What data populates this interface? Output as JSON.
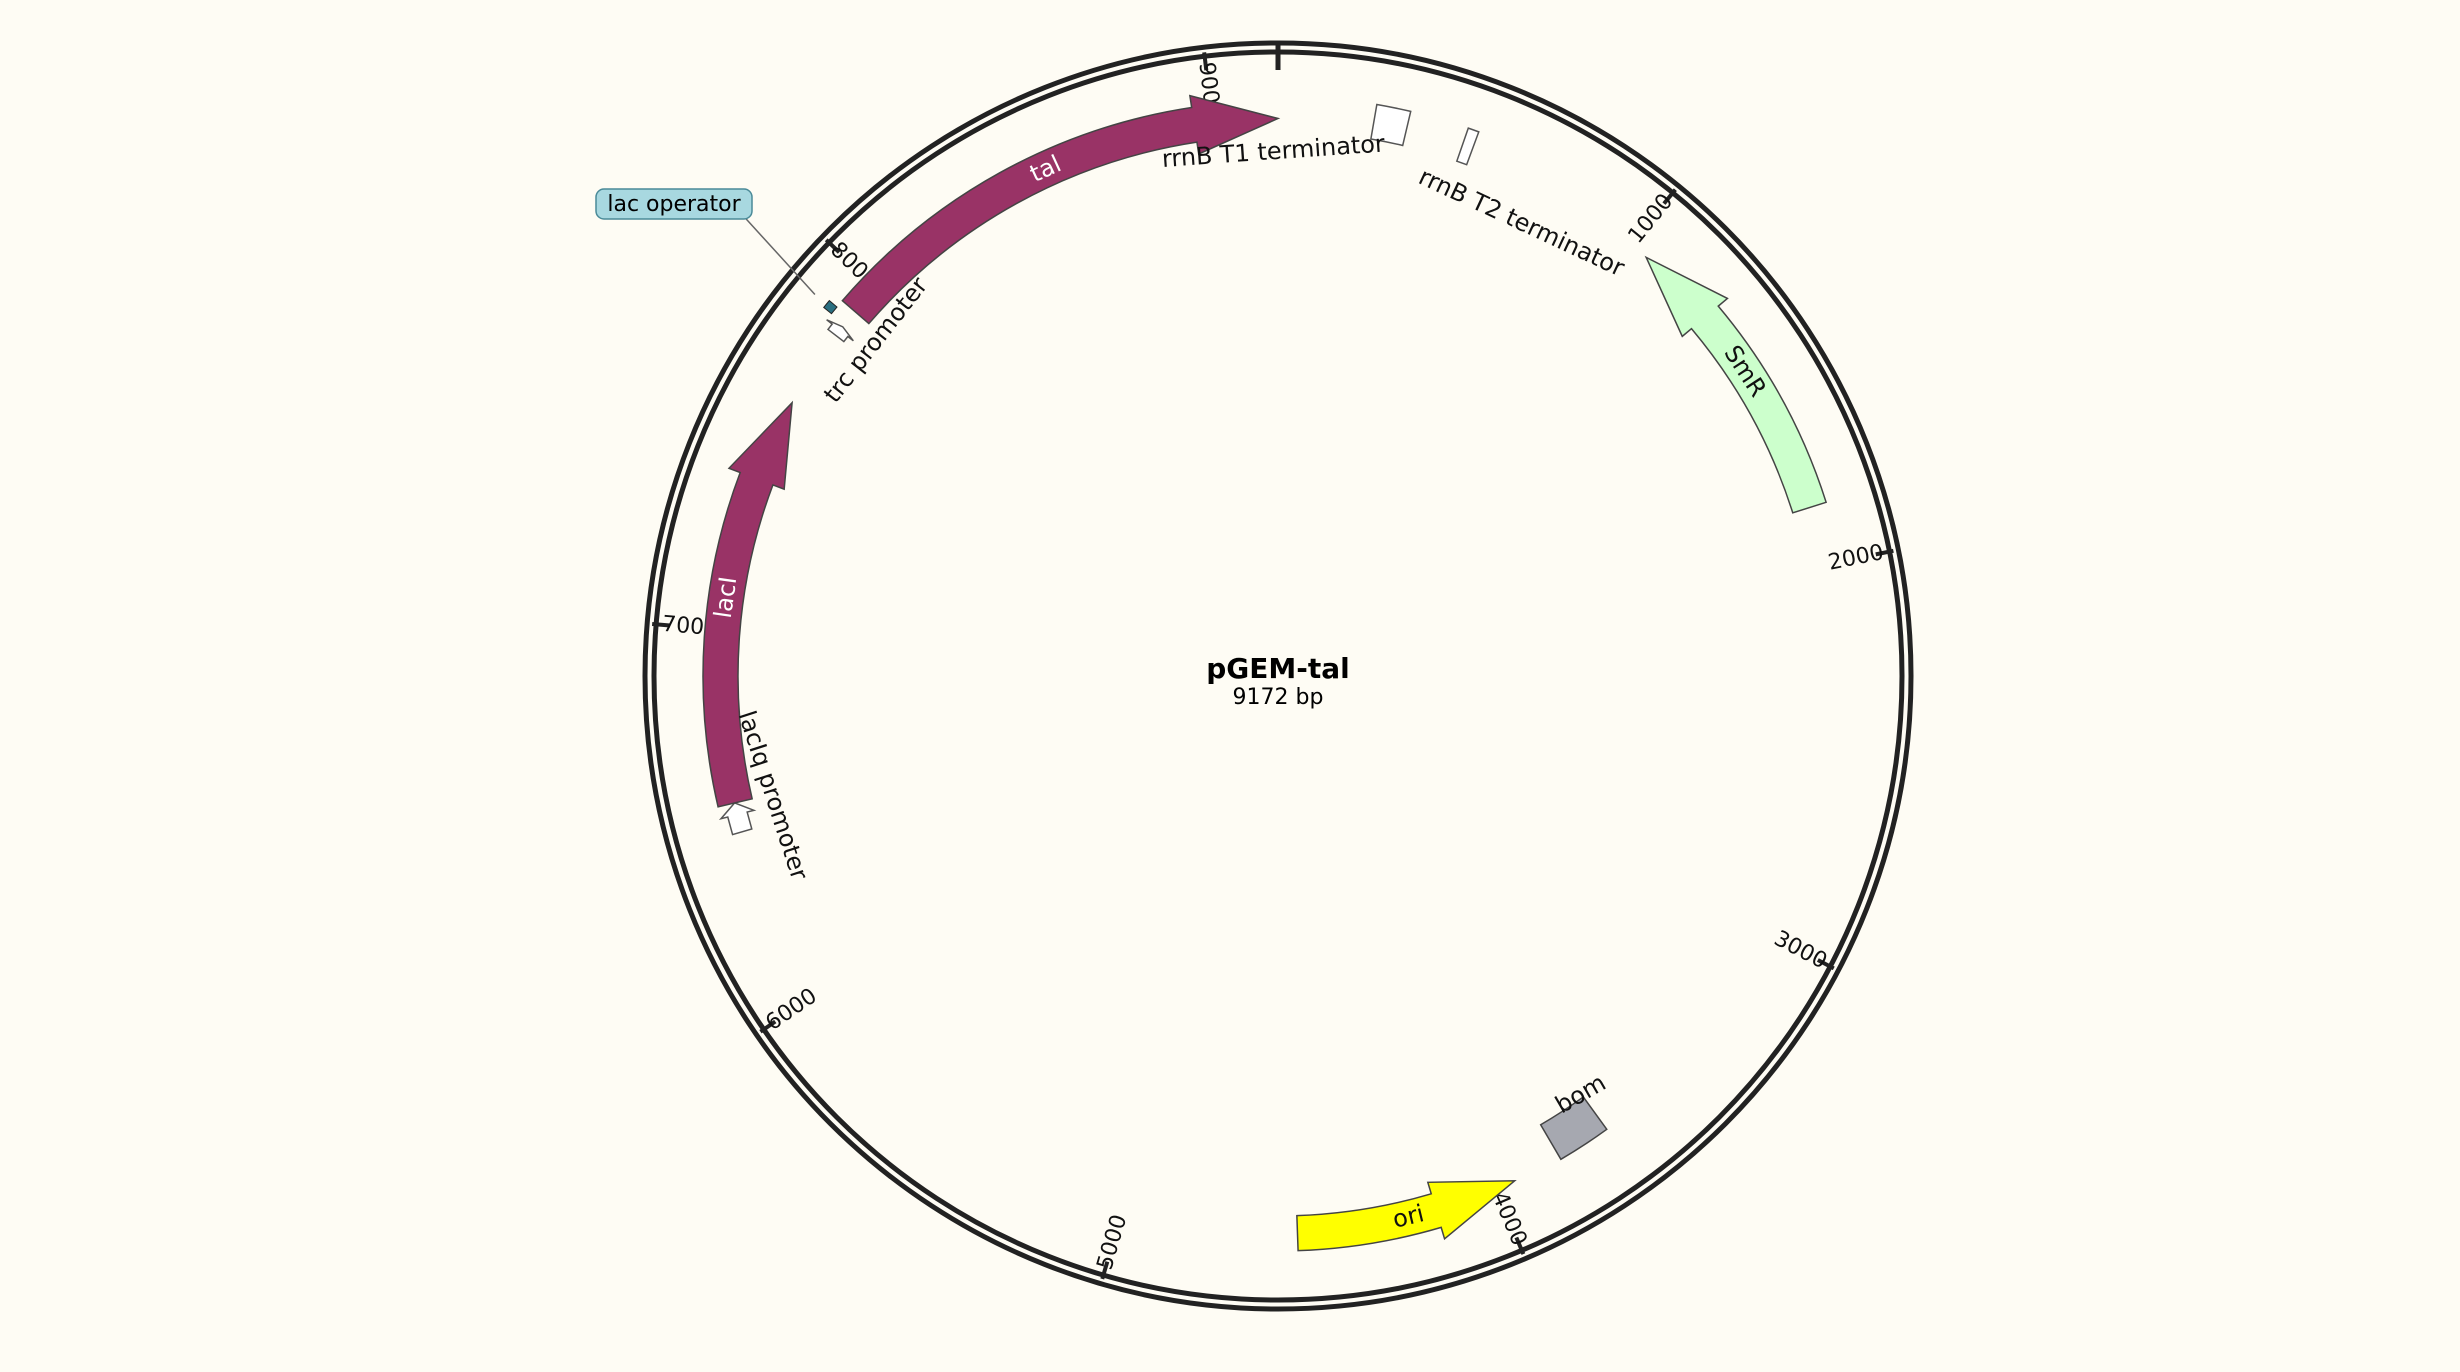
{
  "plasmid": {
    "name": "pGEM-tal",
    "size_label": "9172 bp",
    "length": 9172
  },
  "colors": {
    "background": "#fefcf4",
    "backbone": "#222222",
    "cds": "#993366",
    "smr": "#ccffcc",
    "ori": "#ffff00",
    "bom": "#a6a8b0",
    "lac_operator": "#2a6f80",
    "lac_operator_callout": "#a8d8e0"
  },
  "ticks": [
    {
      "pos": 1000,
      "label": "1000"
    },
    {
      "pos": 2000,
      "label": "2000"
    },
    {
      "pos": 3000,
      "label": "3000"
    },
    {
      "pos": 4000,
      "label": "4000"
    },
    {
      "pos": 5000,
      "label": "5000"
    },
    {
      "pos": 6000,
      "label": "6000"
    },
    {
      "pos": 7000,
      "label": "7000"
    },
    {
      "pos": 8000,
      "label": "8000"
    },
    {
      "pos": 9000,
      "label": "9000"
    }
  ],
  "features": [
    {
      "id": "tal",
      "label": "tal",
      "type": "cds",
      "start": 7917,
      "end": 9172,
      "strand": 1,
      "color": "#993366",
      "text_color": "#ffffff",
      "label_inside": true
    },
    {
      "id": "rrnb-t1",
      "label": "rrnB T1 terminator",
      "type": "terminator",
      "start": 250,
      "end": 337,
      "strand": 0,
      "color": "none",
      "label_inside": false
    },
    {
      "id": "rrnb-t2",
      "label": "rrnB T2 terminator",
      "type": "terminator",
      "start": 488,
      "end": 516,
      "strand": 0,
      "color": "none",
      "label_inside": false
    },
    {
      "id": "smr",
      "label": "SmR",
      "type": "cds",
      "start": 1053,
      "end": 1845,
      "strand": -1,
      "color": "#ccffcc",
      "text_color": "#111111",
      "label_inside": true
    },
    {
      "id": "bom",
      "label": "bom",
      "type": "misc",
      "start": 3670,
      "end": 3813,
      "strand": 0,
      "color": "#a6a8b0",
      "label_inside": false
    },
    {
      "id": "ori",
      "label": "ori",
      "type": "origin",
      "start": 3946,
      "end": 4535,
      "strand": -1,
      "color": "#ffff00",
      "text_color": "#111111",
      "label_inside": true
    },
    {
      "id": "laciq-promoter",
      "label": "lacIq promoter",
      "type": "promoter",
      "start": 6466,
      "end": 6544,
      "strand": 1,
      "color": "#ffffff",
      "label_inside": false
    },
    {
      "id": "laci",
      "label": "lacI",
      "type": "cds",
      "start": 6544,
      "end": 7627,
      "strand": 1,
      "color": "#993366",
      "text_color": "#ffffff",
      "label_inside": true
    },
    {
      "id": "trc-promoter",
      "label": "trc promoter",
      "type": "promoter",
      "start": 7837,
      "end": 7866,
      "strand": 1,
      "color": "#ffffff",
      "label_inside": false
    },
    {
      "id": "lac-operator",
      "label": "lac operator",
      "type": "operator",
      "start": 7874,
      "end": 7896,
      "strand": 0,
      "color": "#2a6f80",
      "label_inside": false,
      "callout": true
    }
  ]
}
